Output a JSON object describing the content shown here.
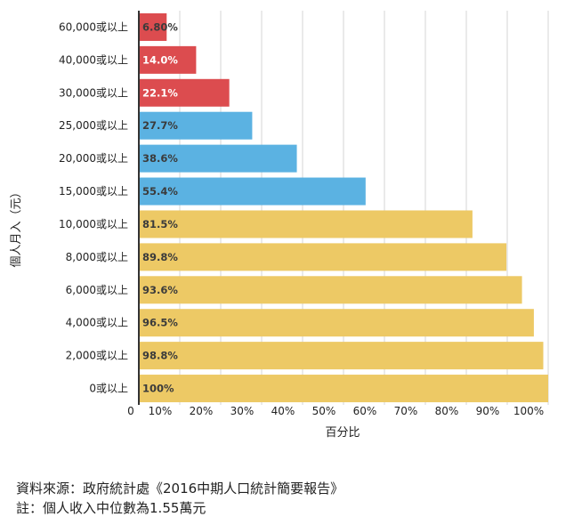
{
  "chart_data": {
    "type": "bar",
    "orientation": "horizontal",
    "ylabel": "個人月入（元）",
    "xlabel": "百分比",
    "xlim": [
      0,
      100
    ],
    "grid": true,
    "x_ticks": [
      "0",
      "10%",
      "20%",
      "30%",
      "40%",
      "50%",
      "60%",
      "70%",
      "80%",
      "90%",
      "100%"
    ],
    "categories": [
      "60,000或以上",
      "40,000或以上",
      "30,000或以上",
      "25,000或以上",
      "20,000或以上",
      "15,000或以上",
      "10,000或以上",
      "8,000或以上",
      "6,000或以上",
      "4,000或以上",
      "2,000或以上",
      "0或以上"
    ],
    "values": [
      6.8,
      14.0,
      22.1,
      27.7,
      38.6,
      55.4,
      81.5,
      89.8,
      93.6,
      96.5,
      98.8,
      100
    ],
    "value_labels": [
      "6.80%",
      "14.0%",
      "22.1%",
      "27.7%",
      "38.6%",
      "55.4%",
      "81.5%",
      "89.8%",
      "93.6%",
      "96.5%",
      "98.8%",
      "100%"
    ],
    "bar_groups": [
      "red",
      "red",
      "red",
      "blue",
      "blue",
      "blue",
      "yellow",
      "yellow",
      "yellow",
      "yellow",
      "yellow",
      "yellow"
    ]
  },
  "colors": {
    "red": "#dc4c4f",
    "blue": "#5bb2e2",
    "yellow": "#edc965",
    "grid": "#d4d4d4",
    "axis": "#333333",
    "label_light": "#ffffff",
    "label_dark": "#3b3b3b"
  },
  "notes": {
    "source": "資料來源：政府統計處《2016中期人口統計簡要報告》",
    "note": "註：個人收入中位數為1.55萬元"
  }
}
